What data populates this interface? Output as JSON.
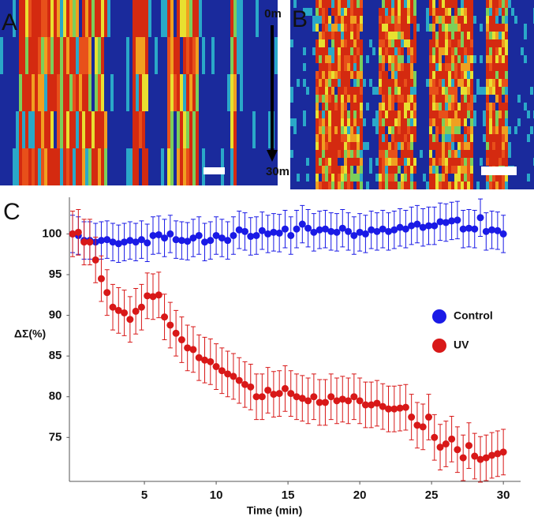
{
  "figure": {
    "panel_labels": [
      "A",
      "B",
      "C"
    ],
    "arrow_start": "0m",
    "arrow_end": "30m"
  },
  "chart_data": {
    "type": "scatter",
    "x_label": "Time (min)",
    "y_label": "ΔΣ(%)",
    "xlim": [
      -0.2,
      31.2
    ],
    "ylim": [
      69.6,
      104.5
    ],
    "xticks": [
      5,
      10,
      15,
      20,
      25,
      30
    ],
    "yticks": [
      75,
      80,
      85,
      90,
      95,
      100
    ],
    "legend": "right",
    "x": [
      0,
      0.4,
      0.8,
      1.2,
      1.6,
      2,
      2.4,
      2.8,
      3.2,
      3.6,
      4,
      4.4,
      4.8,
      5.2,
      5.6,
      6,
      6.4,
      6.8,
      7.2,
      7.6,
      8,
      8.4,
      8.8,
      9.2,
      9.6,
      10,
      10.4,
      10.8,
      11.2,
      11.6,
      12,
      12.4,
      12.8,
      13.2,
      13.6,
      14,
      14.4,
      14.8,
      15.2,
      15.6,
      16,
      16.4,
      16.8,
      17.2,
      17.6,
      18,
      18.4,
      18.8,
      19.2,
      19.6,
      20,
      20.4,
      20.8,
      21.2,
      21.6,
      22,
      22.4,
      22.8,
      23.2,
      23.6,
      24,
      24.4,
      24.8,
      25.2,
      25.6,
      26,
      26.4,
      26.8,
      27.2,
      27.6,
      28,
      28.4,
      28.8,
      29.2,
      29.6,
      30
    ],
    "series": [
      {
        "name": "Control",
        "color": "#1a1ae6",
        "error": 2.3,
        "values": [
          100,
          99.8,
          99.2,
          99.2,
          99,
          99.2,
          99.3,
          99,
          98.8,
          99,
          99.2,
          99,
          99.3,
          98.9,
          99.8,
          99.9,
          99.5,
          100,
          99.3,
          99.2,
          99.1,
          99.5,
          99.8,
          99,
          99.2,
          99.8,
          99.5,
          99.2,
          99.8,
          100.5,
          100.3,
          99.7,
          99.8,
          100.4,
          100,
          100.2,
          100.1,
          100.6,
          99.8,
          100.6,
          101.2,
          100.7,
          100.2,
          100.5,
          100.6,
          100.3,
          100.2,
          100.7,
          100.3,
          99.8,
          100.2,
          100,
          100.5,
          100.3,
          100.6,
          100.3,
          100.5,
          100.8,
          100.6,
          101,
          101.2,
          100.8,
          101,
          101,
          101.5,
          101.4,
          101.6,
          101.7,
          100.6,
          100.7,
          100.6,
          102,
          100.3,
          100.5,
          100.4,
          100
        ]
      },
      {
        "name": "UV",
        "color": "#d81818",
        "error": 2.8,
        "values": [
          100,
          100.2,
          99,
          99,
          96.8,
          94.5,
          92.8,
          91,
          90.6,
          90.3,
          89.5,
          90.5,
          91,
          92.4,
          92.3,
          92.5,
          89.8,
          88.8,
          87.8,
          87,
          86,
          85.8,
          84.8,
          84.5,
          84.3,
          83.7,
          83.2,
          82.8,
          82.5,
          82,
          81.5,
          81.2,
          80,
          80,
          80.8,
          80.3,
          80.4,
          81,
          80.4,
          80,
          79.8,
          79.5,
          80,
          79.3,
          79.3,
          80,
          79.5,
          79.7,
          79.5,
          80,
          79.5,
          79,
          79,
          79.2,
          78.8,
          78.5,
          78.5,
          78.6,
          78.7,
          77.5,
          76.5,
          76.3,
          77.5,
          75,
          73.8,
          74.2,
          74.8,
          73.5,
          72.5,
          74,
          72.7,
          72.3,
          72.5,
          72.8,
          73,
          73.2
        ]
      }
    ]
  }
}
